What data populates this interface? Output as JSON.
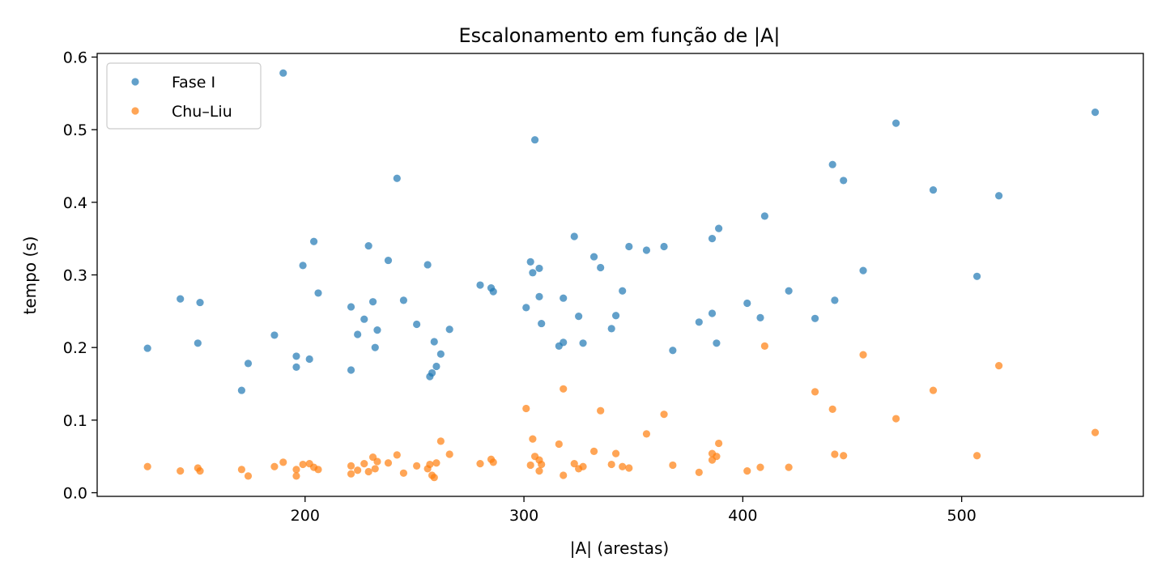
{
  "chart_data": {
    "type": "scatter",
    "title": "Escalonamento em função de |A|",
    "xlabel": "|A| (arestas)",
    "ylabel": "tempo (s)",
    "xlim": [
      105,
      583
    ],
    "ylim": [
      -0.005,
      0.605
    ],
    "xticks": [
      200,
      300,
      400,
      500
    ],
    "yticks": [
      0.0,
      0.1,
      0.2,
      0.3,
      0.4,
      0.5,
      0.6
    ],
    "xtick_labels": [
      "200",
      "300",
      "400",
      "500"
    ],
    "ytick_labels": [
      "0.0",
      "0.1",
      "0.2",
      "0.3",
      "0.4",
      "0.5",
      "0.6"
    ],
    "legend_position": "top-left",
    "grid": false,
    "series": [
      {
        "name": "Fase I",
        "color": "#1f77b4",
        "points": [
          [
            128,
            0.199
          ],
          [
            143,
            0.267
          ],
          [
            151,
            0.206
          ],
          [
            152,
            0.262
          ],
          [
            171,
            0.141
          ],
          [
            174,
            0.178
          ],
          [
            186,
            0.217
          ],
          [
            190,
            0.578
          ],
          [
            196,
            0.173
          ],
          [
            196,
            0.188
          ],
          [
            199,
            0.313
          ],
          [
            202,
            0.184
          ],
          [
            204,
            0.346
          ],
          [
            206,
            0.275
          ],
          [
            221,
            0.256
          ],
          [
            221,
            0.169
          ],
          [
            224,
            0.218
          ],
          [
            227,
            0.239
          ],
          [
            229,
            0.34
          ],
          [
            231,
            0.263
          ],
          [
            232,
            0.2
          ],
          [
            233,
            0.224
          ],
          [
            238,
            0.32
          ],
          [
            242,
            0.433
          ],
          [
            245,
            0.265
          ],
          [
            251,
            0.232
          ],
          [
            256,
            0.314
          ],
          [
            257,
            0.16
          ],
          [
            258,
            0.165
          ],
          [
            259,
            0.208
          ],
          [
            260,
            0.174
          ],
          [
            262,
            0.191
          ],
          [
            266,
            0.225
          ],
          [
            280,
            0.286
          ],
          [
            285,
            0.282
          ],
          [
            286,
            0.277
          ],
          [
            301,
            0.255
          ],
          [
            303,
            0.318
          ],
          [
            304,
            0.303
          ],
          [
            305,
            0.486
          ],
          [
            307,
            0.309
          ],
          [
            307,
            0.27
          ],
          [
            308,
            0.233
          ],
          [
            316,
            0.202
          ],
          [
            318,
            0.268
          ],
          [
            318,
            0.207
          ],
          [
            323,
            0.353
          ],
          [
            325,
            0.243
          ],
          [
            327,
            0.206
          ],
          [
            332,
            0.325
          ],
          [
            335,
            0.31
          ],
          [
            340,
            0.226
          ],
          [
            342,
            0.244
          ],
          [
            345,
            0.278
          ],
          [
            348,
            0.339
          ],
          [
            356,
            0.334
          ],
          [
            364,
            0.339
          ],
          [
            368,
            0.196
          ],
          [
            380,
            0.235
          ],
          [
            386,
            0.35
          ],
          [
            386,
            0.247
          ],
          [
            388,
            0.206
          ],
          [
            389,
            0.364
          ],
          [
            402,
            0.261
          ],
          [
            408,
            0.241
          ],
          [
            410,
            0.381
          ],
          [
            421,
            0.278
          ],
          [
            433,
            0.24
          ],
          [
            441,
            0.452
          ],
          [
            442,
            0.265
          ],
          [
            446,
            0.43
          ],
          [
            455,
            0.306
          ],
          [
            470,
            0.509
          ],
          [
            487,
            0.417
          ],
          [
            507,
            0.298
          ],
          [
            517,
            0.409
          ],
          [
            561,
            0.524
          ]
        ]
      },
      {
        "name": "Chu–Liu",
        "color": "#ff7f0e",
        "points": [
          [
            128,
            0.036
          ],
          [
            143,
            0.03
          ],
          [
            151,
            0.034
          ],
          [
            152,
            0.03
          ],
          [
            171,
            0.032
          ],
          [
            174,
            0.023
          ],
          [
            186,
            0.036
          ],
          [
            190,
            0.042
          ],
          [
            196,
            0.023
          ],
          [
            196,
            0.032
          ],
          [
            199,
            0.039
          ],
          [
            202,
            0.04
          ],
          [
            204,
            0.035
          ],
          [
            206,
            0.032
          ],
          [
            221,
            0.026
          ],
          [
            221,
            0.037
          ],
          [
            224,
            0.031
          ],
          [
            227,
            0.04
          ],
          [
            229,
            0.029
          ],
          [
            231,
            0.049
          ],
          [
            232,
            0.033
          ],
          [
            233,
            0.043
          ],
          [
            238,
            0.041
          ],
          [
            242,
            0.052
          ],
          [
            245,
            0.027
          ],
          [
            251,
            0.037
          ],
          [
            256,
            0.033
          ],
          [
            257,
            0.039
          ],
          [
            258,
            0.024
          ],
          [
            259,
            0.021
          ],
          [
            260,
            0.041
          ],
          [
            262,
            0.071
          ],
          [
            266,
            0.053
          ],
          [
            280,
            0.04
          ],
          [
            285,
            0.046
          ],
          [
            286,
            0.042
          ],
          [
            301,
            0.116
          ],
          [
            303,
            0.038
          ],
          [
            304,
            0.074
          ],
          [
            305,
            0.05
          ],
          [
            307,
            0.045
          ],
          [
            307,
            0.03
          ],
          [
            308,
            0.039
          ],
          [
            316,
            0.067
          ],
          [
            318,
            0.143
          ],
          [
            318,
            0.024
          ],
          [
            323,
            0.04
          ],
          [
            325,
            0.033
          ],
          [
            327,
            0.036
          ],
          [
            332,
            0.057
          ],
          [
            335,
            0.113
          ],
          [
            340,
            0.039
          ],
          [
            342,
            0.054
          ],
          [
            345,
            0.036
          ],
          [
            348,
            0.034
          ],
          [
            356,
            0.081
          ],
          [
            364,
            0.108
          ],
          [
            368,
            0.038
          ],
          [
            380,
            0.028
          ],
          [
            386,
            0.054
          ],
          [
            386,
            0.045
          ],
          [
            388,
            0.05
          ],
          [
            389,
            0.068
          ],
          [
            402,
            0.03
          ],
          [
            408,
            0.035
          ],
          [
            410,
            0.202
          ],
          [
            421,
            0.035
          ],
          [
            433,
            0.139
          ],
          [
            441,
            0.115
          ],
          [
            442,
            0.053
          ],
          [
            446,
            0.051
          ],
          [
            455,
            0.19
          ],
          [
            470,
            0.102
          ],
          [
            487,
            0.141
          ],
          [
            507,
            0.051
          ],
          [
            517,
            0.175
          ],
          [
            561,
            0.083
          ]
        ]
      }
    ]
  }
}
